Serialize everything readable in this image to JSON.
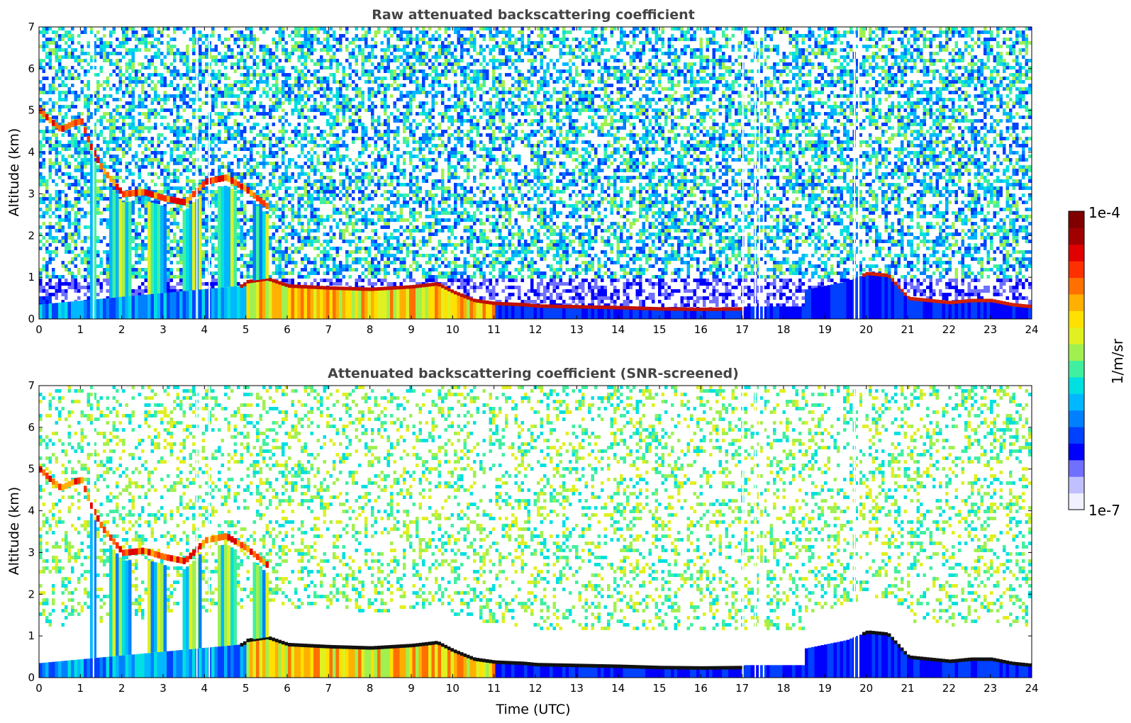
{
  "chart_data": [
    {
      "type": "heatmap",
      "title": "Raw attenuated backscattering coefficient",
      "xlabel": "",
      "ylabel": "Altitude (km)",
      "xlim": [
        0,
        24
      ],
      "ylim": [
        0,
        7
      ],
      "x_ticks": [
        0,
        1,
        2,
        3,
        4,
        5,
        6,
        7,
        8,
        9,
        10,
        11,
        12,
        13,
        14,
        15,
        16,
        17,
        18,
        19,
        20,
        21,
        22,
        23,
        24
      ],
      "y_ticks": [
        0,
        1,
        2,
        3,
        4,
        5,
        6,
        7
      ],
      "boundary_layer": {
        "x": [
          0,
          4.9,
          5.0,
          5.5,
          6.0,
          7.0,
          8.0,
          9.0,
          9.6,
          10.0,
          10.5,
          11.0,
          11.7,
          12.0,
          13.0,
          14.0,
          15.0,
          16.0,
          17.0
        ],
        "y": [
          0.35,
          0.8,
          0.9,
          0.97,
          0.8,
          0.75,
          0.72,
          0.78,
          0.85,
          0.65,
          0.45,
          0.38,
          0.35,
          0.32,
          0.3,
          0.28,
          0.25,
          0.24,
          0.25
        ]
      },
      "upper_cloud": {
        "x": [
          0,
          0.2,
          0.5,
          0.8,
          1.0,
          1.2,
          1.5,
          2.0,
          2.5,
          3.0,
          3.5,
          4.0,
          4.5,
          5.0,
          5.5
        ],
        "y": [
          5.0,
          4.8,
          4.55,
          4.7,
          4.75,
          4.2,
          3.6,
          3.0,
          3.05,
          2.9,
          2.8,
          3.3,
          3.4,
          3.1,
          2.7
        ]
      },
      "late_cloud": {
        "x": [
          18.5,
          19.0,
          19.5,
          20.0,
          20.5,
          21.0,
          21.5,
          22.0,
          22.5,
          23.0,
          23.5,
          24.0
        ],
        "y": [
          0.7,
          0.8,
          0.9,
          1.1,
          1.05,
          0.5,
          0.45,
          0.4,
          0.45,
          0.45,
          0.35,
          0.3
        ]
      },
      "dropout_times": [
        1.3,
        3.8,
        4.1,
        17.0,
        17.3,
        17.4,
        17.5,
        19.7,
        19.8
      ],
      "colorbar": {
        "min": "1e-7",
        "max": "1e-4",
        "label": "1/m/sr",
        "scale": "log"
      }
    },
    {
      "type": "heatmap",
      "title": "Attenuated backscattering coefficient (SNR-screened)",
      "xlabel": "Time (UTC)",
      "ylabel": "Altitude (km)",
      "xlim": [
        0,
        24
      ],
      "ylim": [
        0,
        7
      ],
      "x_ticks": [
        0,
        1,
        2,
        3,
        4,
        5,
        6,
        7,
        8,
        9,
        10,
        11,
        12,
        13,
        14,
        15,
        16,
        17,
        18,
        19,
        20,
        21,
        22,
        23,
        24
      ],
      "y_ticks": [
        0,
        1,
        2,
        3,
        4,
        5,
        6,
        7
      ],
      "note_screening": "noise removed where SNR low; white gap above boundary layer",
      "colorbar": {
        "min": "1e-7",
        "max": "1e-4",
        "label": "1/m/sr",
        "scale": "log"
      }
    }
  ],
  "colorbar": {
    "max_label": "1e-4",
    "min_label": "1e-7",
    "unit_label": "1/m/sr",
    "colormap": [
      "#f0f0ff",
      "#c0c0ff",
      "#7070ff",
      "#0000ff",
      "#0040ff",
      "#0080ff",
      "#00b8ff",
      "#00e0e0",
      "#40f0a0",
      "#a0f050",
      "#e0f020",
      "#ffe000",
      "#ffb000",
      "#ff7000",
      "#ff3000",
      "#e00000",
      "#a00000",
      "#800000"
    ]
  },
  "panels": {
    "top": {
      "title": "Raw attenuated backscattering coefficient",
      "ylabel": "Altitude (km)"
    },
    "bottom": {
      "title": "Attenuated backscattering coefficient (SNR-screened)",
      "ylabel": "Altitude (km)",
      "xlabel": "Time (UTC)"
    }
  }
}
